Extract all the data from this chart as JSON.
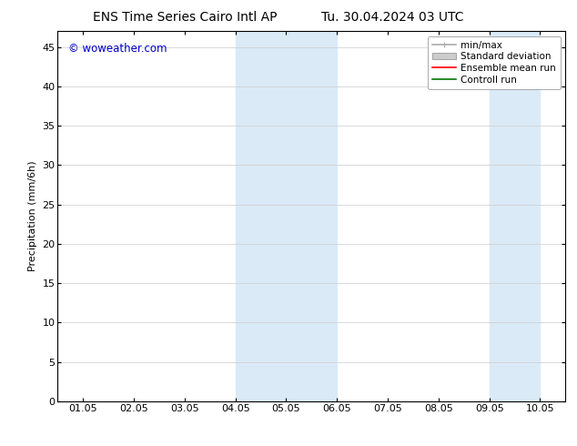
{
  "title_left": "ENS Time Series Cairo Intl AP",
  "title_right": "Tu. 30.04.2024 03 UTC",
  "ylabel": "Precipitation (mm/6h)",
  "watermark": "© woweather.com",
  "xtick_labels": [
    "01.05",
    "02.05",
    "03.05",
    "04.05",
    "05.05",
    "06.05",
    "07.05",
    "08.05",
    "09.05",
    "10.05"
  ],
  "xtick_positions": [
    0,
    1,
    2,
    3,
    4,
    5,
    6,
    7,
    8,
    9
  ],
  "ytick_labels": [
    "0",
    "5",
    "10",
    "15",
    "20",
    "25",
    "30",
    "35",
    "40",
    "45"
  ],
  "ytick_positions": [
    0,
    5,
    10,
    15,
    20,
    25,
    30,
    35,
    40,
    45
  ],
  "ylim": [
    0,
    47
  ],
  "xlim": [
    -0.5,
    9.5
  ],
  "shaded_regions": [
    {
      "xmin": 3.0,
      "xmax": 4.0,
      "color": "#daeaf7"
    },
    {
      "xmin": 4.0,
      "xmax": 5.0,
      "color": "#daeaf7"
    },
    {
      "xmin": 8.0,
      "xmax": 9.0,
      "color": "#daeaf7"
    }
  ],
  "legend_items": [
    {
      "label": "min/max",
      "color": "#aaaaaa",
      "lw": 1.2,
      "style": "line_with_caps"
    },
    {
      "label": "Standard deviation",
      "color": "#cccccc",
      "lw": 8,
      "style": "bar"
    },
    {
      "label": "Ensemble mean run",
      "color": "#ff0000",
      "lw": 1.2,
      "style": "line"
    },
    {
      "label": "Controll run",
      "color": "#007700",
      "lw": 1.2,
      "style": "line"
    }
  ],
  "background_color": "#ffffff",
  "plot_bg_color": "#ffffff",
  "watermark_color": "#0000cc",
  "title_fontsize": 10,
  "axis_fontsize": 8,
  "tick_fontsize": 8
}
